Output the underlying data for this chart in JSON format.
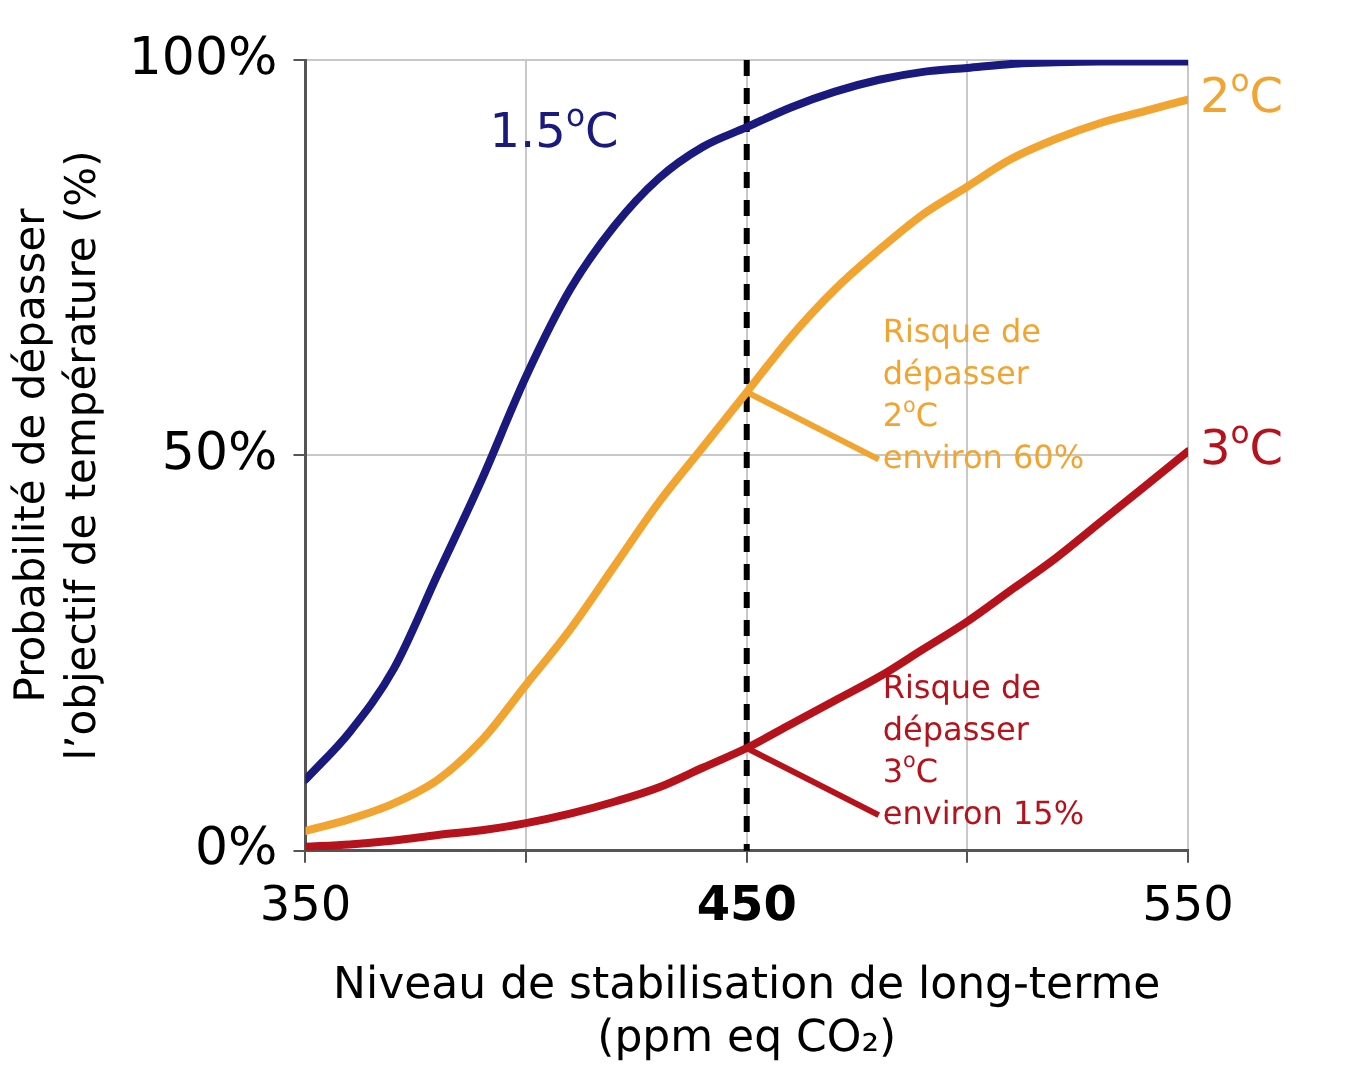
{
  "chart_data": {
    "type": "line",
    "xlabel": "Niveau de stabilisation de long-terme\n(ppm eq CO₂)",
    "ylabel": "Probabilité de dépasser\nl’objectif de température (%)",
    "x": [
      350,
      360,
      370,
      380,
      390,
      400,
      410,
      420,
      430,
      440,
      450,
      460,
      470,
      480,
      490,
      500,
      510,
      520,
      530,
      540,
      550
    ],
    "series": [
      {
        "name": "1.5$^{o}$C",
        "color": "#1a1a7e",
        "values": [
          9,
          15,
          23,
          35,
          47,
          60,
          71,
          79,
          85,
          89,
          91.5,
          94,
          96,
          97.5,
          98.5,
          99,
          99.5,
          99.7,
          99.8,
          99.8,
          99.8
        ]
      },
      {
        "name": "2$^{o}$C",
        "color": "#f2a431",
        "values": [
          2.5,
          4,
          6,
          9,
          14,
          21,
          28,
          36,
          44,
          51,
          58,
          65,
          71,
          76,
          80.5,
          84,
          87.5,
          90,
          92,
          93.5,
          95
        ]
      },
      {
        "name": "3$^{o}$C",
        "color": "#b5121b",
        "values": [
          0.5,
          0.8,
          1.3,
          2,
          2.6,
          3.5,
          4.7,
          6.2,
          8,
          10.5,
          13,
          16,
          19,
          22,
          25.5,
          29,
          33,
          37,
          41.5,
          46,
          50.5
        ]
      }
    ],
    "xlim": [
      350,
      550
    ],
    "xticks": [
      350,
      {
        "value": 400,
        "label": null
      },
      450,
      {
        "value": 500,
        "label": null
      },
      550
    ],
    "ylim": [
      0,
      100
    ],
    "yticks": [
      {
        "value": 0,
        "label": "0%"
      },
      {
        "value": 50,
        "label": "50%"
      },
      {
        "value": 100,
        "label": "100%"
      }
    ],
    "grid": true,
    "marker": "none",
    "line_style": "solid",
    "legend": false,
    "ref_lines": [
      {
        "axis": "x",
        "value": 450,
        "line_style": "dashed",
        "color": "#000000"
      }
    ],
    "annotations": [
      {
        "text": "Risque de\ndépasser\n2$^{o}$C\nenviron 60%",
        "x": 450,
        "y": 58
      },
      {
        "text": "Risque de\ndépasser\n3$^{o}$C\nenviron 15%",
        "x": 450,
        "y": 13
      }
    ]
  }
}
